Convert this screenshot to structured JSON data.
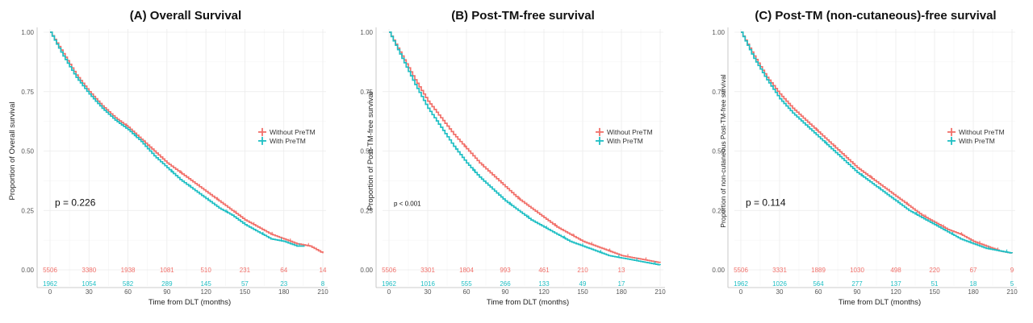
{
  "colors": {
    "without": "#f1706a",
    "with": "#1fbfc4",
    "grid": "#ebebeb",
    "axis": "#bbbbbb"
  },
  "chart_data": [
    {
      "type": "line",
      "title": "(A) Overall Survival",
      "xlabel": "Time from DLT (months)",
      "ylabel": "Proportion of Overall survival",
      "xlim": [
        0,
        210
      ],
      "ylim": [
        0,
        1
      ],
      "xticks": [
        0,
        30,
        60,
        90,
        120,
        150,
        180,
        210
      ],
      "xtick_labels": [
        "0",
        "30",
        "60",
        "90",
        "120",
        "150",
        "180",
        "210"
      ],
      "yticks": [
        0,
        0.25,
        0.5,
        0.75,
        1
      ],
      "ytick_labels": [
        "0.00",
        "0.25",
        "0.50",
        "0.75",
        "1.00"
      ],
      "grid": true,
      "legend": "right",
      "p_value": "p = 0.226",
      "p_small": false,
      "series": [
        {
          "name": "Without PreTM",
          "key": "without",
          "x": [
            0,
            10,
            20,
            30,
            40,
            50,
            60,
            70,
            80,
            90,
            100,
            110,
            120,
            130,
            140,
            150,
            160,
            170,
            180,
            190,
            200,
            210
          ],
          "y": [
            1.0,
            0.91,
            0.82,
            0.75,
            0.69,
            0.64,
            0.6,
            0.55,
            0.5,
            0.45,
            0.41,
            0.37,
            0.33,
            0.29,
            0.25,
            0.21,
            0.18,
            0.15,
            0.13,
            0.11,
            0.1,
            0.07
          ],
          "risk": [
            "5506",
            "3380",
            "1938",
            "1081",
            "510",
            "231",
            "64",
            "14"
          ]
        },
        {
          "name": "With PreTM",
          "key": "with",
          "x": [
            0,
            10,
            20,
            30,
            40,
            50,
            60,
            70,
            80,
            90,
            100,
            110,
            120,
            130,
            140,
            150,
            160,
            170,
            180,
            190,
            196
          ],
          "y": [
            1.0,
            0.9,
            0.81,
            0.74,
            0.68,
            0.63,
            0.59,
            0.54,
            0.48,
            0.43,
            0.38,
            0.34,
            0.3,
            0.26,
            0.23,
            0.19,
            0.16,
            0.13,
            0.12,
            0.1,
            0.1
          ],
          "risk": [
            "1962",
            "1054",
            "582",
            "289",
            "145",
            "57",
            "23",
            "8"
          ]
        }
      ]
    },
    {
      "type": "line",
      "title": "(B) Post-TM-free survival",
      "xlabel": "Time from DLT (months)",
      "ylabel": "Proportion of Post-TM-free survival",
      "xlim": [
        0,
        210
      ],
      "ylim": [
        0,
        1
      ],
      "xticks": [
        0,
        30,
        60,
        90,
        120,
        150,
        180,
        210
      ],
      "xtick_labels": [
        "0",
        "30",
        "60",
        "90",
        "120",
        "150",
        "180",
        "210"
      ],
      "yticks": [
        0,
        0.25,
        0.5,
        0.75,
        1
      ],
      "ytick_labels": [
        "0.00",
        "0.25",
        "0.50",
        "0.75",
        "1.00"
      ],
      "grid": true,
      "legend": "right",
      "p_value": "p < 0.001",
      "p_small": true,
      "series": [
        {
          "name": "Without PreTM",
          "key": "without",
          "x": [
            0,
            10,
            20,
            30,
            40,
            50,
            60,
            70,
            80,
            90,
            100,
            110,
            120,
            130,
            140,
            150,
            160,
            170,
            180,
            190,
            200,
            210
          ],
          "y": [
            1.0,
            0.9,
            0.8,
            0.71,
            0.64,
            0.57,
            0.51,
            0.45,
            0.4,
            0.35,
            0.3,
            0.26,
            0.22,
            0.18,
            0.15,
            0.12,
            0.1,
            0.08,
            0.06,
            0.05,
            0.04,
            0.03
          ],
          "risk": [
            "5506",
            "3301",
            "1804",
            "993",
            "461",
            "210",
            "13"
          ]
        },
        {
          "name": "With PreTM",
          "key": "with",
          "x": [
            0,
            10,
            20,
            30,
            40,
            50,
            60,
            70,
            80,
            90,
            100,
            110,
            120,
            130,
            140,
            150,
            160,
            170,
            180,
            190,
            200,
            210
          ],
          "y": [
            1.0,
            0.89,
            0.78,
            0.68,
            0.6,
            0.52,
            0.45,
            0.39,
            0.34,
            0.29,
            0.25,
            0.21,
            0.18,
            0.15,
            0.12,
            0.1,
            0.08,
            0.06,
            0.05,
            0.04,
            0.03,
            0.02
          ],
          "risk": [
            "1962",
            "1016",
            "555",
            "266",
            "133",
            "49",
            "17"
          ]
        }
      ]
    },
    {
      "type": "line",
      "title": "(C) Post-TM (non-cutaneous)-free survival",
      "xlabel": "Time from DLT (months)",
      "ylabel": "Proportion of non-cutaneous Post-TM-free survival",
      "xlim": [
        0,
        210
      ],
      "ylim": [
        0,
        1
      ],
      "xticks": [
        0,
        30,
        60,
        90,
        120,
        150,
        180,
        210
      ],
      "xtick_labels": [
        "0",
        "30",
        "60",
        "90",
        "120",
        "150",
        "180",
        "210"
      ],
      "yticks": [
        0,
        0.25,
        0.5,
        0.75,
        1
      ],
      "ytick_labels": [
        "0.00",
        "0.25",
        "0.50",
        "0.75",
        "1.00"
      ],
      "grid": true,
      "legend": "right",
      "p_value": "p = 0.114",
      "p_small": false,
      "series": [
        {
          "name": "Without PreTM",
          "key": "without",
          "x": [
            0,
            10,
            20,
            30,
            40,
            50,
            60,
            70,
            80,
            90,
            100,
            110,
            120,
            130,
            140,
            150,
            160,
            170,
            180,
            190,
            200,
            210
          ],
          "y": [
            1.0,
            0.9,
            0.81,
            0.74,
            0.68,
            0.63,
            0.58,
            0.53,
            0.48,
            0.43,
            0.39,
            0.35,
            0.31,
            0.27,
            0.23,
            0.2,
            0.17,
            0.15,
            0.12,
            0.1,
            0.08,
            0.07
          ],
          "risk": [
            "5506",
            "3331",
            "1889",
            "1030",
            "498",
            "220",
            "67",
            "9"
          ]
        },
        {
          "name": "With PreTM",
          "key": "with",
          "x": [
            0,
            10,
            20,
            30,
            40,
            50,
            60,
            70,
            80,
            90,
            100,
            110,
            120,
            130,
            140,
            150,
            160,
            170,
            180,
            190,
            200,
            210
          ],
          "y": [
            1.0,
            0.89,
            0.8,
            0.72,
            0.66,
            0.61,
            0.56,
            0.51,
            0.46,
            0.41,
            0.37,
            0.33,
            0.29,
            0.25,
            0.22,
            0.19,
            0.16,
            0.13,
            0.11,
            0.09,
            0.08,
            0.07
          ],
          "risk": [
            "1962",
            "1026",
            "564",
            "277",
            "137",
            "51",
            "18",
            "5"
          ]
        }
      ]
    }
  ]
}
